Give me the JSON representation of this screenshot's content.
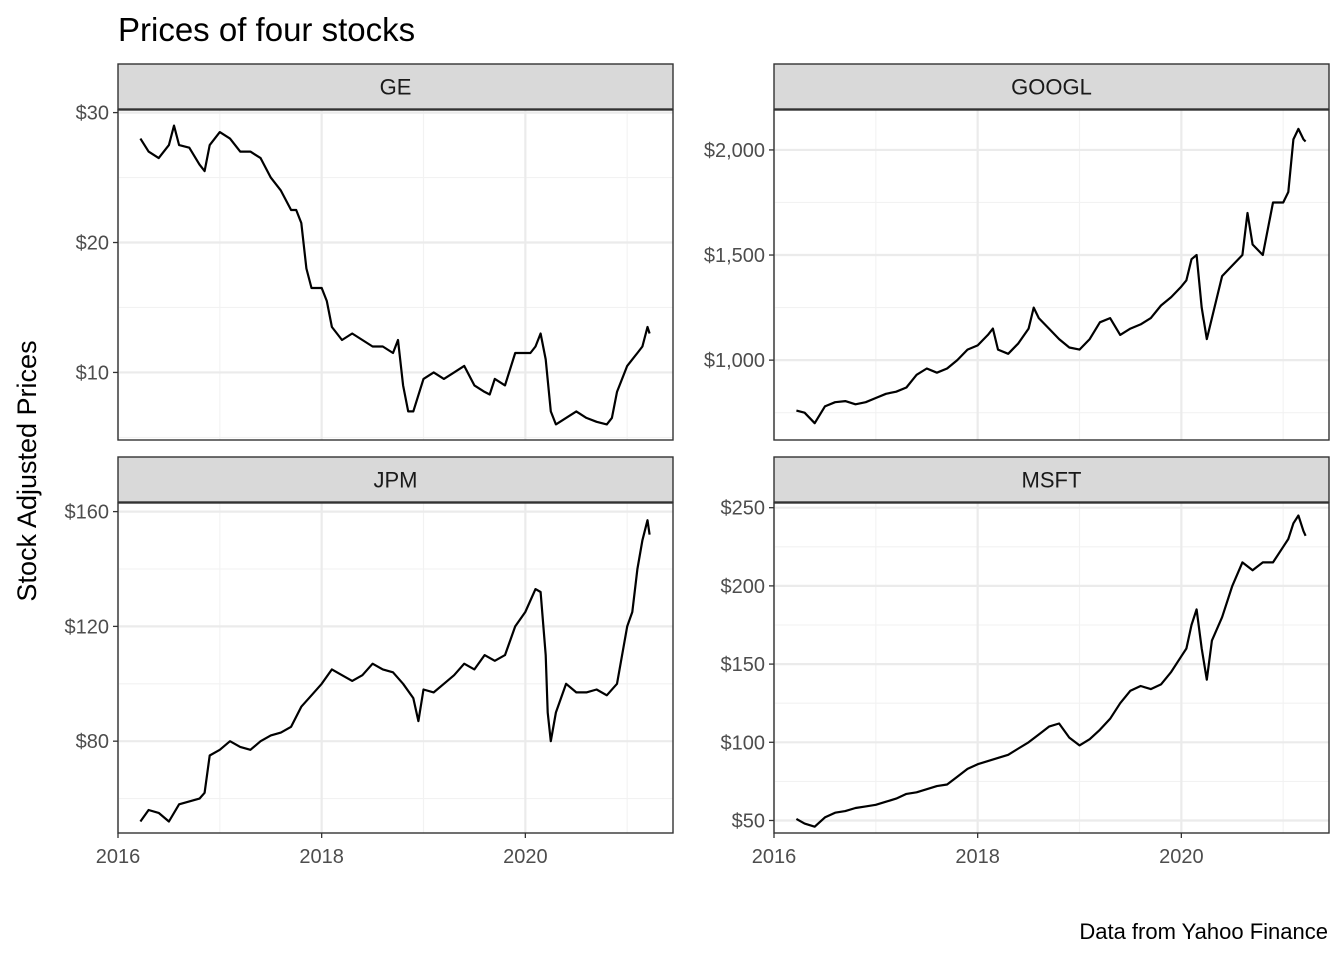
{
  "chart_data": {
    "type": "line",
    "title": "Prices of four stocks",
    "ylabel": "Stock Adjusted Prices",
    "xlabel": "",
    "caption": "Data from Yahoo Finance",
    "x_range": [
      2016.0,
      2021.45
    ],
    "x_ticks": [
      2016,
      2018,
      2020
    ],
    "x_tick_labels": [
      "2016",
      "2018",
      "2020"
    ],
    "grid": true,
    "layout": "facet 2x2, free y scales",
    "panels": [
      {
        "name": "GE",
        "ylim": [
          4.8,
          30.2
        ],
        "y_ticks": [
          10,
          20,
          30
        ],
        "y_tick_labels": [
          "$10",
          "$20",
          "$30"
        ],
        "series": [
          {
            "x": [
              2016.22,
              2016.3,
              2016.4,
              2016.5,
              2016.55,
              2016.6,
              2016.7,
              2016.8,
              2016.85,
              2016.9,
              2017.0,
              2017.1,
              2017.2,
              2017.3,
              2017.4,
              2017.5,
              2017.6,
              2017.7,
              2017.75,
              2017.8,
              2017.85,
              2017.9,
              2018.0,
              2018.05,
              2018.1,
              2018.2,
              2018.3,
              2018.4,
              2018.5,
              2018.6,
              2018.7,
              2018.75,
              2018.8,
              2018.85,
              2018.9,
              2019.0,
              2019.1,
              2019.2,
              2019.3,
              2019.4,
              2019.5,
              2019.6,
              2019.65,
              2019.7,
              2019.8,
              2019.9,
              2020.0,
              2020.05,
              2020.1,
              2020.15,
              2020.2,
              2020.25,
              2020.3,
              2020.4,
              2020.5,
              2020.6,
              2020.7,
              2020.8,
              2020.85,
              2020.9,
              2021.0,
              2021.05,
              2021.1,
              2021.15,
              2021.2,
              2021.22
            ],
            "y": [
              28.0,
              27.0,
              26.5,
              27.5,
              29.0,
              27.5,
              27.3,
              26.0,
              25.5,
              27.5,
              28.5,
              28.0,
              27.0,
              27.0,
              26.5,
              25.0,
              24.0,
              22.5,
              22.5,
              21.5,
              18.0,
              16.5,
              16.5,
              15.5,
              13.5,
              12.5,
              13.0,
              12.5,
              12.0,
              12.0,
              11.5,
              12.5,
              9.0,
              7.0,
              7.0,
              9.5,
              10.0,
              9.5,
              10.0,
              10.5,
              9.0,
              8.5,
              8.3,
              9.5,
              9.0,
              11.5,
              11.5,
              11.5,
              12.0,
              13.0,
              11.0,
              7.0,
              6.0,
              6.5,
              7.0,
              6.5,
              6.2,
              6.0,
              6.5,
              8.5,
              10.5,
              11.0,
              11.5,
              12.0,
              13.5,
              13.0
            ]
          }
        ]
      },
      {
        "name": "GOOGL",
        "ylim": [
          620,
          2190
        ],
        "y_ticks": [
          1000,
          1500,
          2000
        ],
        "y_tick_labels": [
          "$1,000",
          "$1,500",
          "$2,000"
        ],
        "series": [
          {
            "x": [
              2016.22,
              2016.3,
              2016.4,
              2016.5,
              2016.6,
              2016.7,
              2016.8,
              2016.9,
              2017.0,
              2017.1,
              2017.2,
              2017.3,
              2017.4,
              2017.5,
              2017.6,
              2017.7,
              2017.8,
              2017.9,
              2018.0,
              2018.1,
              2018.15,
              2018.2,
              2018.3,
              2018.4,
              2018.5,
              2018.55,
              2018.6,
              2018.7,
              2018.8,
              2018.9,
              2019.0,
              2019.1,
              2019.2,
              2019.3,
              2019.4,
              2019.5,
              2019.6,
              2019.7,
              2019.8,
              2019.9,
              2020.0,
              2020.05,
              2020.1,
              2020.15,
              2020.2,
              2020.25,
              2020.3,
              2020.4,
              2020.5,
              2020.6,
              2020.65,
              2020.7,
              2020.8,
              2020.9,
              2021.0,
              2021.05,
              2021.1,
              2021.15,
              2021.2,
              2021.22
            ],
            "y": [
              760,
              750,
              700,
              780,
              800,
              805,
              790,
              800,
              820,
              840,
              850,
              870,
              930,
              960,
              940,
              960,
              1000,
              1050,
              1070,
              1120,
              1150,
              1050,
              1030,
              1080,
              1150,
              1250,
              1200,
              1150,
              1100,
              1060,
              1050,
              1100,
              1180,
              1200,
              1120,
              1150,
              1170,
              1200,
              1260,
              1300,
              1350,
              1380,
              1480,
              1500,
              1250,
              1100,
              1200,
              1400,
              1450,
              1500,
              1700,
              1550,
              1500,
              1750,
              1750,
              1800,
              2050,
              2100,
              2050,
              2040
            ]
          }
        ]
      },
      {
        "name": "JPM",
        "ylim": [
          48,
          163
        ],
        "y_ticks": [
          80,
          120,
          160
        ],
        "y_tick_labels": [
          "$80",
          "$120",
          "$160"
        ],
        "series": [
          {
            "x": [
              2016.22,
              2016.3,
              2016.4,
              2016.5,
              2016.6,
              2016.7,
              2016.8,
              2016.85,
              2016.9,
              2017.0,
              2017.1,
              2017.2,
              2017.3,
              2017.4,
              2017.5,
              2017.6,
              2017.7,
              2017.8,
              2017.9,
              2018.0,
              2018.1,
              2018.2,
              2018.3,
              2018.4,
              2018.5,
              2018.6,
              2018.7,
              2018.8,
              2018.9,
              2018.95,
              2019.0,
              2019.1,
              2019.2,
              2019.3,
              2019.4,
              2019.5,
              2019.6,
              2019.7,
              2019.8,
              2019.9,
              2020.0,
              2020.1,
              2020.15,
              2020.2,
              2020.22,
              2020.25,
              2020.3,
              2020.4,
              2020.5,
              2020.6,
              2020.7,
              2020.8,
              2020.9,
              2021.0,
              2021.05,
              2021.1,
              2021.15,
              2021.2,
              2021.22
            ],
            "y": [
              52,
              56,
              55,
              52,
              58,
              59,
              60,
              62,
              75,
              77,
              80,
              78,
              77,
              80,
              82,
              83,
              85,
              92,
              96,
              100,
              105,
              103,
              101,
              103,
              107,
              105,
              104,
              100,
              95,
              87,
              98,
              97,
              100,
              103,
              107,
              105,
              110,
              108,
              110,
              120,
              125,
              133,
              132,
              110,
              90,
              80,
              90,
              100,
              97,
              97,
              98,
              96,
              100,
              120,
              125,
              140,
              150,
              157,
              152
            ]
          }
        ]
      },
      {
        "name": "MSFT",
        "ylim": [
          42,
          253
        ],
        "y_ticks": [
          50,
          100,
          150,
          200,
          250
        ],
        "y_tick_labels": [
          "$50",
          "$100",
          "$150",
          "$200",
          "$250"
        ],
        "series": [
          {
            "x": [
              2016.22,
              2016.3,
              2016.4,
              2016.5,
              2016.6,
              2016.7,
              2016.8,
              2016.9,
              2017.0,
              2017.1,
              2017.2,
              2017.3,
              2017.4,
              2017.5,
              2017.6,
              2017.7,
              2017.8,
              2017.9,
              2018.0,
              2018.1,
              2018.2,
              2018.3,
              2018.4,
              2018.5,
              2018.6,
              2018.7,
              2018.8,
              2018.9,
              2019.0,
              2019.1,
              2019.2,
              2019.3,
              2019.4,
              2019.5,
              2019.6,
              2019.7,
              2019.8,
              2019.9,
              2020.0,
              2020.05,
              2020.1,
              2020.15,
              2020.2,
              2020.25,
              2020.3,
              2020.4,
              2020.5,
              2020.6,
              2020.7,
              2020.8,
              2020.9,
              2021.0,
              2021.05,
              2021.1,
              2021.15,
              2021.2,
              2021.22
            ],
            "y": [
              51,
              48,
              46,
              52,
              55,
              56,
              58,
              59,
              60,
              62,
              64,
              67,
              68,
              70,
              72,
              73,
              78,
              83,
              86,
              88,
              90,
              92,
              96,
              100,
              105,
              110,
              112,
              103,
              98,
              102,
              108,
              115,
              125,
              133,
              136,
              134,
              137,
              145,
              155,
              160,
              175,
              185,
              160,
              140,
              165,
              180,
              200,
              215,
              210,
              215,
              215,
              225,
              230,
              240,
              245,
              235,
              232
            ]
          }
        ]
      }
    ]
  }
}
